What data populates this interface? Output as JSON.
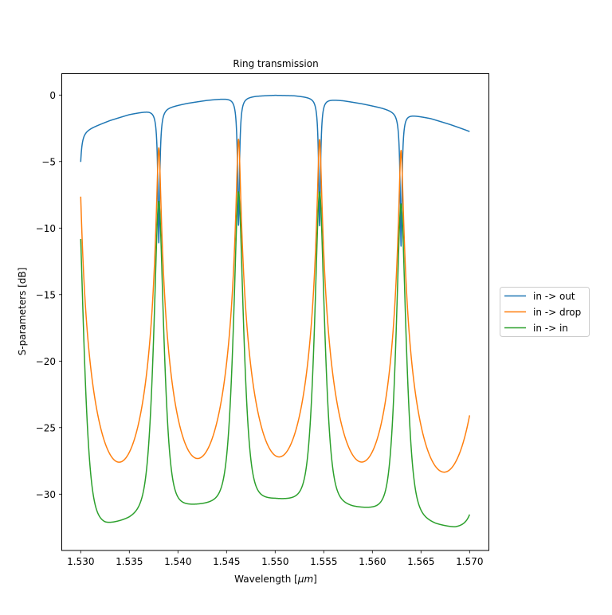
{
  "chart_data": {
    "type": "line",
    "title": "Ring transmission",
    "xlabel_prefix": "Wavelength [",
    "xlabel_unit": "μm",
    "xlabel_suffix": "]",
    "ylabel": "S-parameters [dB]",
    "xlim": [
      1.52805,
      1.57203
    ],
    "ylim": [
      -34.2,
      1.63
    ],
    "x_range": [
      1.53,
      1.57
    ],
    "xticks": [
      1.53,
      1.535,
      1.54,
      1.545,
      1.55,
      1.555,
      1.56,
      1.565,
      1.57
    ],
    "xtick_labels": [
      "1.530",
      "1.535",
      "1.540",
      "1.545",
      "1.550",
      "1.555",
      "1.560",
      "1.565",
      "1.570"
    ],
    "yticks": [
      0,
      -5,
      -10,
      -15,
      -20,
      -25,
      -30
    ],
    "ytick_labels": [
      "0",
      "−5",
      "−10",
      "−15",
      "−20",
      "−25",
      "−30"
    ],
    "grid": false,
    "legend_placement": "right, outside",
    "resonances_um": [
      1.52978,
      1.53803,
      1.54623,
      1.55457,
      1.56295,
      1.57196
    ],
    "series": [
      {
        "name": "in -> out",
        "color": "#1f77b4",
        "baseline_db": [
          [
            1.53,
            -2.75
          ],
          [
            1.531,
            -2.45
          ],
          [
            1.533,
            -1.9
          ],
          [
            1.535,
            -1.45
          ],
          [
            1.537,
            -1.15
          ],
          [
            1.5381,
            -1.05
          ],
          [
            1.539,
            -0.88
          ],
          [
            1.541,
            -0.6
          ],
          [
            1.543,
            -0.38
          ],
          [
            1.545,
            -0.22
          ],
          [
            1.5462,
            -0.15
          ],
          [
            1.548,
            -0.05
          ],
          [
            1.55,
            0
          ],
          [
            1.552,
            -0.03
          ],
          [
            1.5545,
            -0.18
          ],
          [
            1.557,
            -0.4
          ],
          [
            1.559,
            -0.65
          ],
          [
            1.561,
            -0.95
          ],
          [
            1.5629,
            -1.3
          ],
          [
            1.564,
            -1.45
          ],
          [
            1.566,
            -1.75
          ],
          [
            1.568,
            -2.2
          ],
          [
            1.57,
            -2.7
          ]
        ],
        "notch_depth": [
          0.9,
          0.9,
          0.89,
          0.89,
          0.9,
          0.9
        ],
        "notch_halfwidth_um": 0.0002
      },
      {
        "name": "in -> drop",
        "color": "#ff7f0e",
        "peak_linear": [
          0.45,
          0.4,
          0.465,
          0.462,
          0.383,
          0.45
        ],
        "peak_db": [
          -3.5,
          -4.0,
          -3.33,
          -3.35,
          -4.17,
          -3.5
        ],
        "minima_db": [
          [
            1.5338,
            -29.55
          ],
          [
            1.542,
            -28.2
          ],
          [
            1.5502,
            -27.8
          ],
          [
            1.5588,
            -28.3
          ],
          [
            1.5675,
            -29.8
          ]
        ],
        "halfwidth_um": 0.000173
      },
      {
        "name": "in -> in",
        "color": "#2ca02c",
        "floor_db": [
          [
            1.53,
            -32.5
          ],
          [
            1.5325,
            -32.4
          ],
          [
            1.535,
            -31.9
          ],
          [
            1.538,
            -31.1
          ],
          [
            1.541,
            -30.9
          ],
          [
            1.544,
            -30.7
          ],
          [
            1.546,
            -30.5
          ],
          [
            1.55,
            -30.4
          ],
          [
            1.553,
            -30.5
          ],
          [
            1.5545,
            -30.6
          ],
          [
            1.558,
            -31.0
          ],
          [
            1.561,
            -31.2
          ],
          [
            1.563,
            -31.5
          ],
          [
            1.5665,
            -32.3
          ],
          [
            1.5685,
            -32.6
          ],
          [
            1.57,
            -32.6
          ]
        ],
        "peak_linear": [
          0.16,
          0.158,
          0.186,
          0.186,
          0.151,
          0.16
        ],
        "peak_db": [
          -8.0,
          -8.0,
          -7.3,
          -7.3,
          -8.2,
          -8.0
        ],
        "halfwidth_um": 0.00035
      }
    ]
  }
}
